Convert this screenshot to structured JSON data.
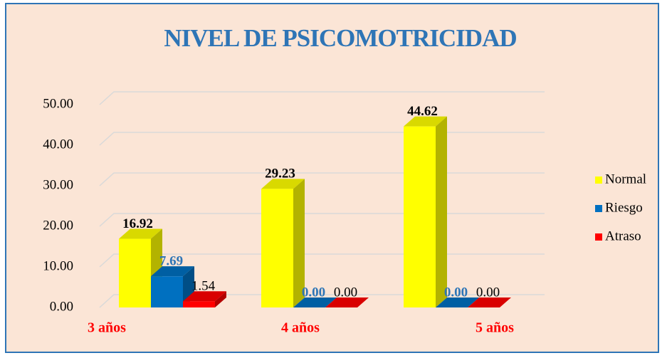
{
  "chart_data": {
    "type": "bar3d",
    "title": "NIVEL DE PSICOMOTRICIDAD",
    "categories": [
      "3 años",
      "4 años",
      "5 años"
    ],
    "series": [
      {
        "name": "Normal",
        "color": "#ffff00",
        "values": [
          16.92,
          29.23,
          44.62
        ],
        "value_labels": [
          "16.92",
          "29.23",
          "44.62"
        ]
      },
      {
        "name": "Riesgo",
        "color": "#0070c0",
        "values": [
          7.69,
          0,
          0
        ],
        "value_labels": [
          "7.69",
          "0.00",
          "0.00"
        ]
      },
      {
        "name": "Atraso",
        "color": "#ff0000",
        "values": [
          1.54,
          0,
          0
        ],
        "value_labels": [
          "1.54",
          "0.00",
          "0.00"
        ]
      }
    ],
    "ylim": [
      0,
      50
    ],
    "yticks": [
      {
        "value": 0,
        "label": "0.00"
      },
      {
        "value": 10,
        "label": "10.00"
      },
      {
        "value": 20,
        "label": "20.00"
      },
      {
        "value": 30,
        "label": "30.00"
      },
      {
        "value": 40,
        "label": "40.00"
      },
      {
        "value": 50,
        "label": "50.00"
      }
    ],
    "grid": true,
    "legend": "right"
  }
}
